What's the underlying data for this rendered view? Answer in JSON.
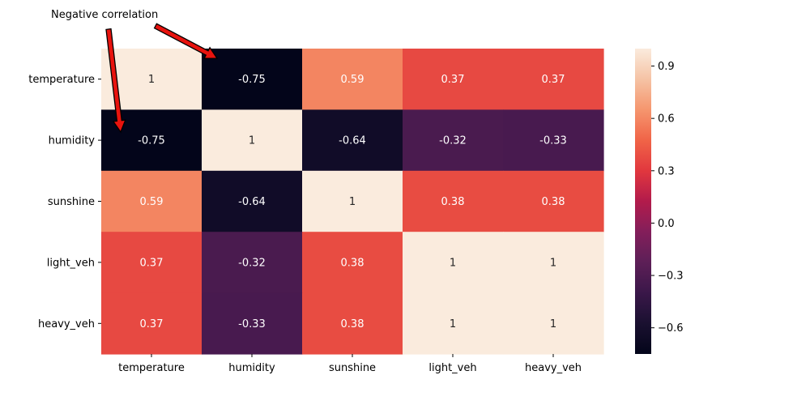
{
  "chart_data": {
    "type": "heatmap",
    "rows": [
      "temperature",
      "humidity",
      "sunshine",
      "light_veh",
      "heavy_veh"
    ],
    "cols": [
      "temperature",
      "humidity",
      "sunshine",
      "light_veh",
      "heavy_veh"
    ],
    "values": [
      [
        1,
        -0.75,
        0.59,
        0.37,
        0.37
      ],
      [
        -0.75,
        1,
        -0.64,
        -0.32,
        -0.33
      ],
      [
        0.59,
        -0.64,
        1,
        0.38,
        0.38
      ],
      [
        0.37,
        -0.32,
        0.38,
        1,
        1
      ],
      [
        0.37,
        -0.33,
        0.38,
        1,
        1
      ]
    ],
    "value_labels": [
      [
        "1",
        "-0.75",
        "0.59",
        "0.37",
        "0.37"
      ],
      [
        "-0.75",
        "1",
        "-0.64",
        "-0.32",
        "-0.33"
      ],
      [
        "0.59",
        "-0.64",
        "1",
        "0.38",
        "0.38"
      ],
      [
        "0.37",
        "-0.32",
        "0.38",
        "1",
        "1"
      ],
      [
        "0.37",
        "-0.33",
        "0.38",
        "1",
        "1"
      ]
    ],
    "colorbar": {
      "vmin": -0.75,
      "vmax": 1,
      "ticks": [
        -0.6,
        -0.3,
        0.0,
        0.3,
        0.6,
        0.9
      ],
      "tick_labels": [
        "−0.6",
        "−0.3",
        "0.0",
        "0.3",
        "0.6",
        "0.9"
      ],
      "colormap": "rocket"
    },
    "annotation": {
      "text": "Negative correlation",
      "targets": [
        [
          1,
          0
        ],
        [
          0,
          1
        ]
      ],
      "arrow_color": "#e8130e"
    },
    "title": "",
    "xlabel": "",
    "ylabel": ""
  }
}
